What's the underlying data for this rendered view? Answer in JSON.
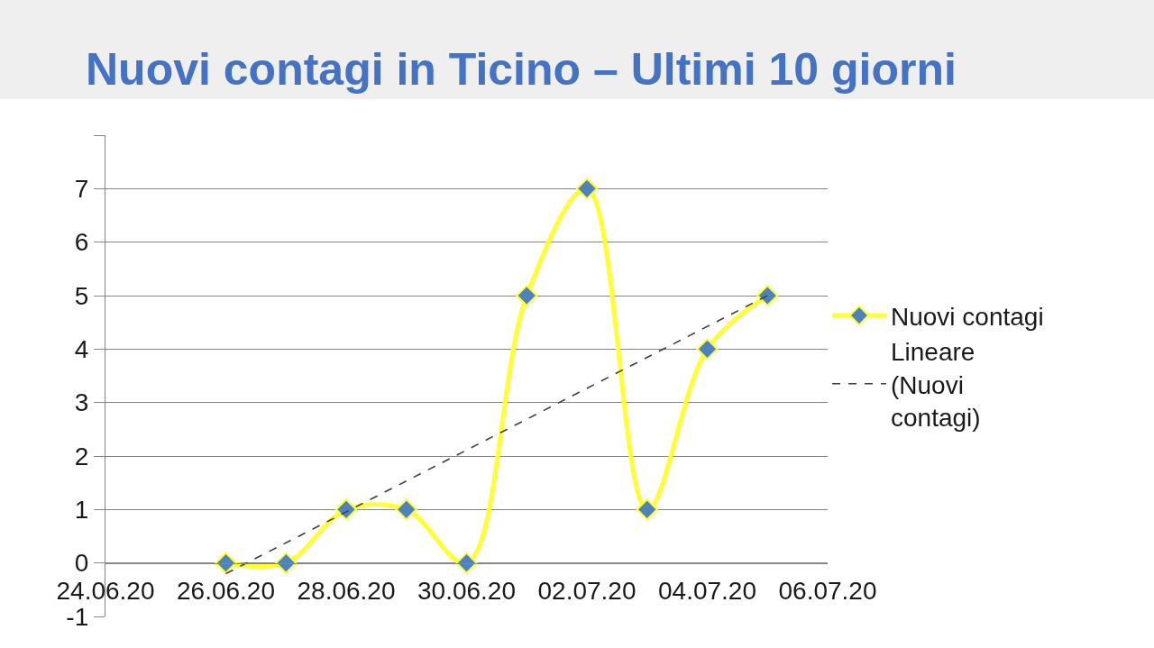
{
  "chart_data": {
    "type": "line",
    "title": "Nuovi contagi in Ticino – Ultimi 10 giorni",
    "x": [
      "--06-26",
      "--06-27",
      "--06-28",
      "--06-29",
      "--06-30",
      "--07-01",
      "--07-02",
      "--07-03",
      "--07-04",
      "--07-05"
    ],
    "series": [
      {
        "name": "Nuovi contagi",
        "color": "#ffff33",
        "colors": [
          "#4f81bd",
          "#4f81bd",
          "#4f81bd",
          "#4f81bd",
          "#4f81bd",
          "#4f81bd",
          "#4f81bd",
          "#4f81bd",
          "#4f81bd",
          "#4f81bd"
        ],
        "values": [
          0,
          0,
          1,
          1,
          0,
          5,
          7,
          1,
          4,
          5
        ],
        "marker": "diamond",
        "line_style": "solid"
      },
      {
        "name": "Lineare (Nuovi contagi)",
        "type": "line",
        "color": "#404040",
        "x": [
          "--06-26",
          "--07-05"
        ],
        "values": [
          -0.2,
          5
        ],
        "marker": "none",
        "line_style": "dashed"
      }
    ],
    "xlim": [
      "--06-24",
      "--07-06"
    ],
    "xticks": [
      {
        "value": "--06-24",
        "label": "24.06.20"
      },
      {
        "value": "--06-26",
        "label": "26.06.20"
      },
      {
        "value": "--06-28",
        "label": "28.06.20"
      },
      {
        "value": "--06-30",
        "label": "30.06.20"
      },
      {
        "value": "--07-02",
        "label": "02.07.20"
      },
      {
        "value": "--07-04",
        "label": "04.07.20"
      },
      {
        "value": "--07-06",
        "label": "06.07.20"
      }
    ],
    "ylim": [
      -1,
      8
    ],
    "yticks": [
      -1,
      0,
      1,
      2,
      3,
      4,
      5,
      6,
      7,
      {
        "value": 8,
        "label": null
      }
    ],
    "grid": "y",
    "legend": "right"
  }
}
